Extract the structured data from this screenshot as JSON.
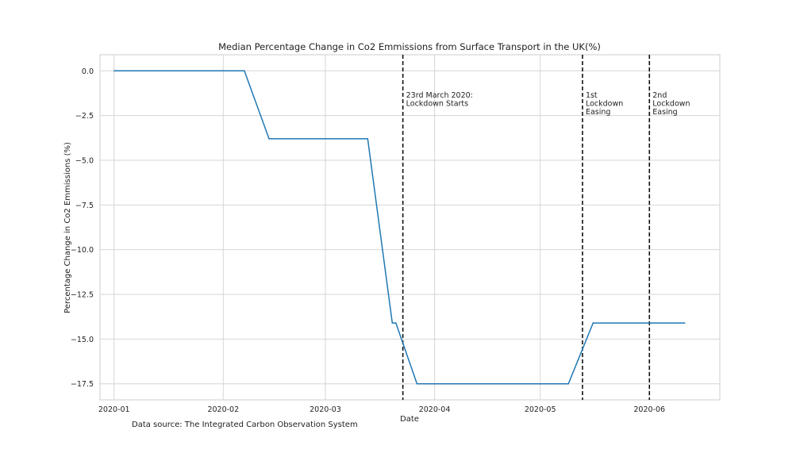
{
  "chart_data": {
    "type": "line",
    "title": "Median Percentage Change in Co2 Emmissions from Surface Transport in the UK(%)",
    "xlabel": "Date",
    "ylabel": "Percentage Change in Co2 Emmissions (%)",
    "x_range": [
      "2019-12-28",
      "2020-06-21"
    ],
    "ylim": [
      -18.4,
      0.9
    ],
    "grid": true,
    "x_ticks": [
      {
        "date": "2020-01-01",
        "label": "2020-01"
      },
      {
        "date": "2020-02-01",
        "label": "2020-02"
      },
      {
        "date": "2020-03-01",
        "label": "2020-03"
      },
      {
        "date": "2020-04-01",
        "label": "2020-04"
      },
      {
        "date": "2020-05-01",
        "label": "2020-05"
      },
      {
        "date": "2020-06-01",
        "label": "2020-06"
      }
    ],
    "y_ticks": [
      {
        "value": 0.0,
        "label": "0.0"
      },
      {
        "value": -2.5,
        "label": "−2.5"
      },
      {
        "value": -5.0,
        "label": "−5.0"
      },
      {
        "value": -7.5,
        "label": "−7.5"
      },
      {
        "value": -10.0,
        "label": "−10.0"
      },
      {
        "value": -12.5,
        "label": "−12.5"
      },
      {
        "value": -15.0,
        "label": "−15.0"
      },
      {
        "value": -17.5,
        "label": "−17.5"
      }
    ],
    "series": [
      {
        "color": "#1f77b4",
        "points": [
          {
            "x": "2020-01-01",
            "y": 0.0
          },
          {
            "x": "2020-02-07",
            "y": 0.0
          },
          {
            "x": "2020-02-14",
            "y": -3.8
          },
          {
            "x": "2020-03-13",
            "y": -3.8
          },
          {
            "x": "2020-03-20",
            "y": -14.1
          },
          {
            "x": "2020-03-21",
            "y": -14.1
          },
          {
            "x": "2020-03-27",
            "y": -17.5
          },
          {
            "x": "2020-05-09",
            "y": -17.5
          },
          {
            "x": "2020-05-16",
            "y": -14.1
          },
          {
            "x": "2020-06-11",
            "y": -14.1
          }
        ]
      }
    ],
    "events": [
      {
        "x": "2020-03-23",
        "label_lines": [
          "23rd March 2020:",
          "Lockdown Starts"
        ]
      },
      {
        "x": "2020-05-13",
        "label_lines": [
          "1st",
          "Lockdown",
          "Easing"
        ]
      },
      {
        "x": "2020-06-01",
        "label_lines": [
          "2nd",
          "Lockdown",
          "Easing"
        ]
      }
    ]
  },
  "caption": "Data source: The Integrated Carbon Observation System"
}
